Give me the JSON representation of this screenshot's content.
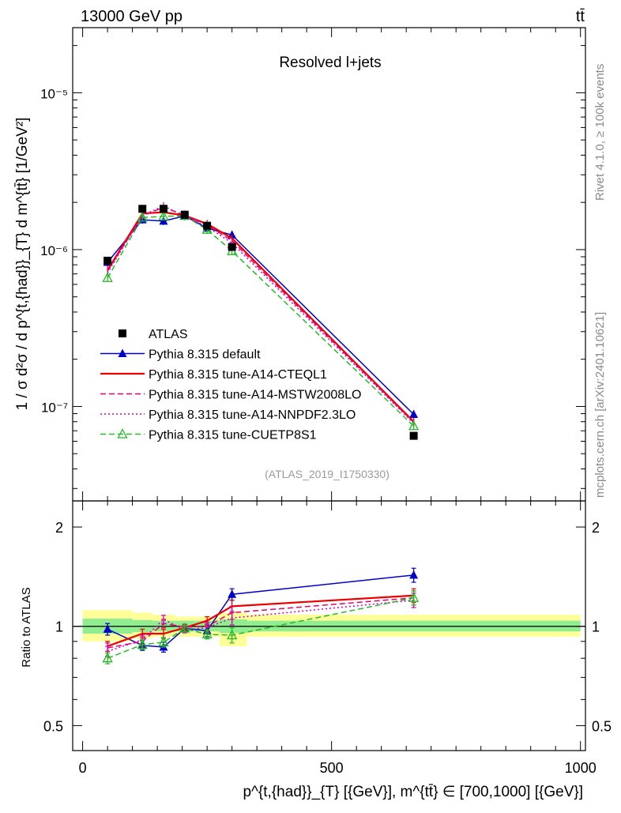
{
  "header": {
    "energy_label": "13000 GeV pp",
    "process_label": "tt̄"
  },
  "side_labels": {
    "rivet": "Rivet 4.1.0, ≥ 100k events",
    "mcplots": "mcplots.cern.ch [arXiv:2401.10621]"
  },
  "chart_data": [
    {
      "panel": "main",
      "type": "line",
      "title": "Resolved l+jets",
      "watermark": "(ATLAS_2019_I1750330)",
      "ylabel": "1 / σ d²σ / d p^{t,{had}}_{T} d m^{tt̄} [1/GeV²]",
      "yscale": "log",
      "ylim": [
        2.5e-08,
        2.6e-05
      ],
      "xlim": [
        -20,
        1010
      ],
      "ytick_labels": [
        "10⁻⁷",
        "10⁻⁶",
        "10⁻⁵"
      ],
      "legend_position": "left-middle",
      "x": [
        50,
        120,
        162.5,
        205,
        250,
        300,
        665
      ],
      "series": [
        {
          "name": "ATLAS",
          "color": "#000000",
          "marker": "square",
          "values": [
            8.5e-07,
            1.82e-06,
            1.82e-06,
            1.67e-06,
            1.42e-06,
            1.04e-06,
            6.5e-08
          ]
        },
        {
          "name": "Pythia 8.315 default",
          "color": "#0000cc",
          "marker": "triangle",
          "dash": "solid",
          "values": [
            8.3e-07,
            1.55e-06,
            1.52e-06,
            1.64e-06,
            1.37e-06,
            1.24e-06,
            8.9e-08
          ]
        },
        {
          "name": "Pythia 8.315 tune-A14-CTEQL1",
          "color": "#ee0000",
          "marker": "none",
          "dash": "solid",
          "values": [
            7.4e-07,
            1.7e-06,
            1.73e-06,
            1.65e-06,
            1.46e-06,
            1.18e-06,
            8e-08
          ]
        },
        {
          "name": "Pythia 8.315 tune-A14-MSTW2008LO",
          "color": "#e8006a",
          "marker": "none",
          "dash": "dashed",
          "values": [
            7.3e-07,
            1.64e-06,
            1.86e-06,
            1.66e-06,
            1.43e-06,
            1.14e-06,
            7.9e-08
          ]
        },
        {
          "name": "Pythia 8.315 tune-A14-NNPDF2.3LO",
          "color": "#d000c0",
          "marker": "none",
          "dash": "dotted",
          "values": [
            7.1e-07,
            1.65e-06,
            1.9e-06,
            1.63e-06,
            1.4e-06,
            1.1e-06,
            7.8e-08
          ]
        },
        {
          "name": "Pythia 8.315 tune-CUETP8S1",
          "color": "#22bb22",
          "marker": "open-triangle",
          "dash": "dashed",
          "values": [
            6.6e-07,
            1.6e-06,
            1.63e-06,
            1.64e-06,
            1.34e-06,
            9.8e-07,
            7.5e-08
          ]
        }
      ]
    },
    {
      "panel": "ratio",
      "type": "line",
      "ylabel": "Ratio to ATLAS",
      "yscale": "log",
      "ylim": [
        0.42,
        2.4
      ],
      "xlim": [
        -20,
        1010
      ],
      "xlabel": "p^{t,{had}}_{T} [{GeV}], m^{tt̄} ∈ [700,1000] [{GeV}]",
      "xtick_labels": [
        "0",
        "500",
        "1000"
      ],
      "ytick_labels": [
        "0.5",
        "1",
        "2"
      ],
      "x": [
        50,
        120,
        162.5,
        205,
        250,
        300,
        665
      ],
      "bands": {
        "edges": [
          0,
          100,
          140,
          185,
          225,
          275,
          330,
          1000
        ],
        "inner_low": [
          0.95,
          0.96,
          0.965,
          0.965,
          0.965,
          0.955,
          0.965
        ],
        "inner_high": [
          1.055,
          1.045,
          1.04,
          1.04,
          1.04,
          1.05,
          1.04
        ],
        "outer_low": [
          0.9,
          0.92,
          0.93,
          0.93,
          0.93,
          0.87,
          0.93
        ],
        "outer_high": [
          1.12,
          1.1,
          1.085,
          1.07,
          1.07,
          1.1,
          1.085
        ]
      },
      "series": [
        {
          "name": "Pythia 8.315 default",
          "color": "#0000cc",
          "marker": "triangle",
          "dash": "solid",
          "values": [
            0.98,
            0.875,
            0.865,
            0.985,
            0.97,
            1.25,
            1.43
          ],
          "errors": [
            0.04,
            0.03,
            0.03,
            0.02,
            0.04,
            0.05,
            0.07
          ]
        },
        {
          "name": "Pythia 8.315 tune-A14-CTEQL1",
          "color": "#ee0000",
          "marker": "none",
          "dash": "solid",
          "values": [
            0.87,
            0.95,
            0.95,
            0.99,
            1.04,
            1.15,
            1.24
          ],
          "errors": [
            0.03,
            0.03,
            0.03,
            0.02,
            0.03,
            0.05,
            0.06
          ]
        },
        {
          "name": "Pythia 8.315 tune-A14-MSTW2008LO",
          "color": "#e8006a",
          "marker": "none",
          "dash": "dashed",
          "values": [
            0.86,
            0.9,
            1.02,
            0.995,
            1.0,
            1.1,
            1.22
          ],
          "errors": [
            0.03,
            0.03,
            0.03,
            0.02,
            0.03,
            0.05,
            0.06
          ]
        },
        {
          "name": "Pythia 8.315 tune-A14-NNPDF2.3LO",
          "color": "#d000c0",
          "marker": "none",
          "dash": "dotted",
          "values": [
            0.84,
            0.91,
            1.05,
            0.975,
            0.99,
            1.06,
            1.2
          ],
          "errors": [
            0.03,
            0.03,
            0.03,
            0.02,
            0.03,
            0.05,
            0.06
          ]
        },
        {
          "name": "Pythia 8.315 tune-CUETP8S1",
          "color": "#22bb22",
          "marker": "open-triangle",
          "dash": "dashed",
          "values": [
            0.8,
            0.88,
            0.895,
            0.985,
            0.945,
            0.94,
            1.22
          ],
          "errors": [
            0.03,
            0.03,
            0.03,
            0.02,
            0.03,
            0.05,
            0.06
          ]
        }
      ]
    }
  ]
}
